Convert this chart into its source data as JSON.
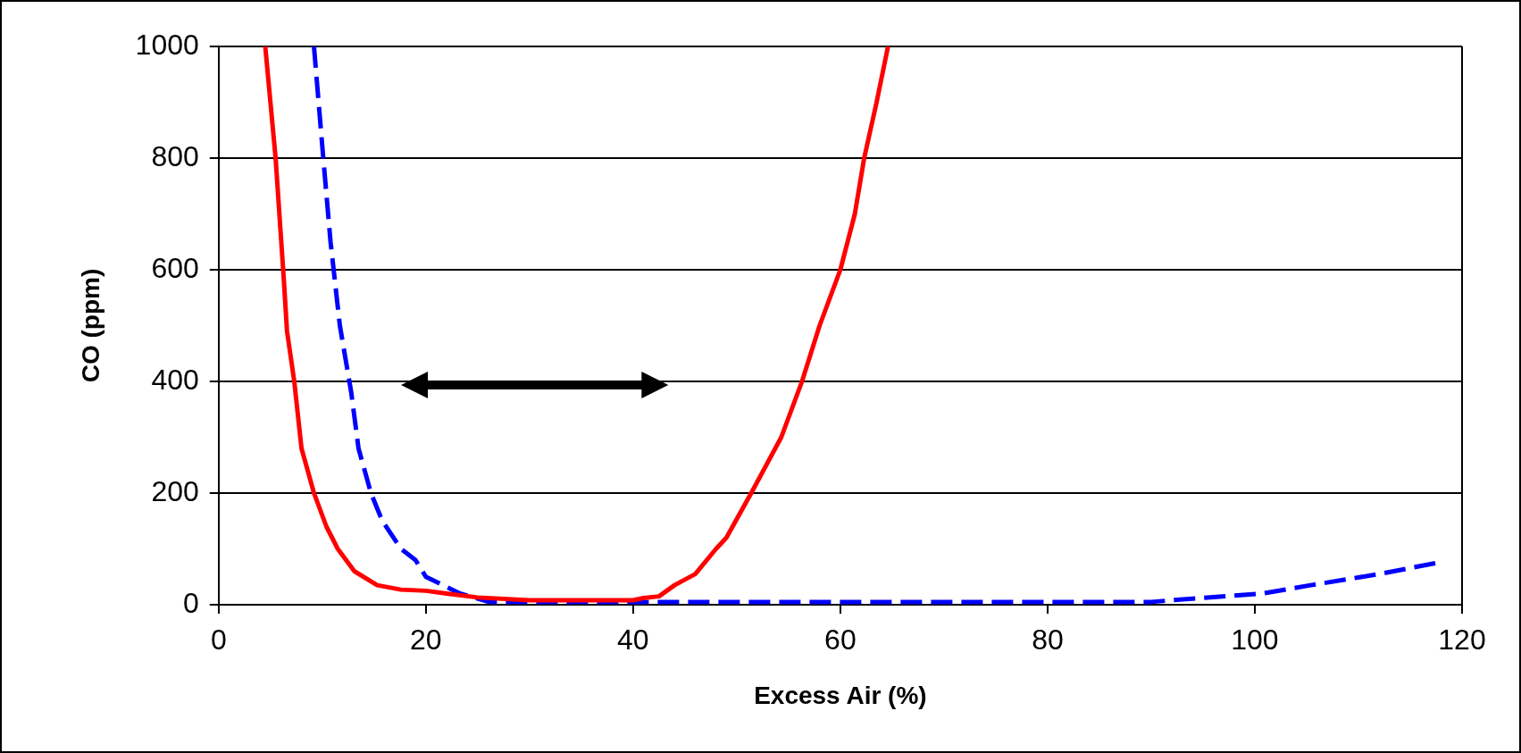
{
  "chart_data": {
    "type": "line",
    "xlabel": "Excess Air (%)",
    "ylabel": "CO (ppm)",
    "xlim": [
      0,
      120
    ],
    "xticks": [
      0,
      20,
      40,
      60,
      80,
      100,
      120
    ],
    "ylim": [
      0,
      1000
    ],
    "yticks": [
      0,
      200,
      400,
      600,
      800,
      1000
    ],
    "grid": "y",
    "legend": false,
    "marker": "none",
    "series": [
      {
        "color": "#ff0000",
        "line_style": "solid",
        "x": [
          4.5,
          5.5,
          6.3,
          6.6,
          7.3,
          8.0,
          9.2,
          10.4,
          11.5,
          13.1,
          15.3,
          17.6,
          20,
          22,
          25,
          30,
          35,
          40,
          41,
          42.5,
          44,
          46,
          48,
          49,
          51.4,
          54.3,
          56.3,
          58,
          60,
          61.4,
          62.3,
          63.5,
          64.6
        ],
        "values": [
          1000,
          800,
          580,
          490,
          400,
          280,
          200,
          140,
          100,
          60,
          35,
          27,
          25,
          20,
          13,
          8,
          8,
          8,
          12,
          15,
          35,
          55,
          100,
          120,
          200,
          300,
          400,
          500,
          600,
          700,
          800,
          900,
          1000
        ]
      },
      {
        "color": "#0000ff",
        "line_style": "dashed",
        "x": [
          9.2,
          10.1,
          10.8,
          11.7,
          12.8,
          13.5,
          14.7,
          15.8,
          17.6,
          19,
          20,
          23.3,
          26.1,
          40,
          60,
          80,
          90,
          92,
          100.7,
          105.4,
          112,
          117.6
        ],
        "values": [
          1000,
          800,
          650,
          500,
          380,
          280,
          200,
          150,
          100,
          80,
          50,
          20,
          5,
          5,
          5,
          5,
          5,
          8,
          20,
          35,
          55,
          75
        ]
      }
    ]
  }
}
